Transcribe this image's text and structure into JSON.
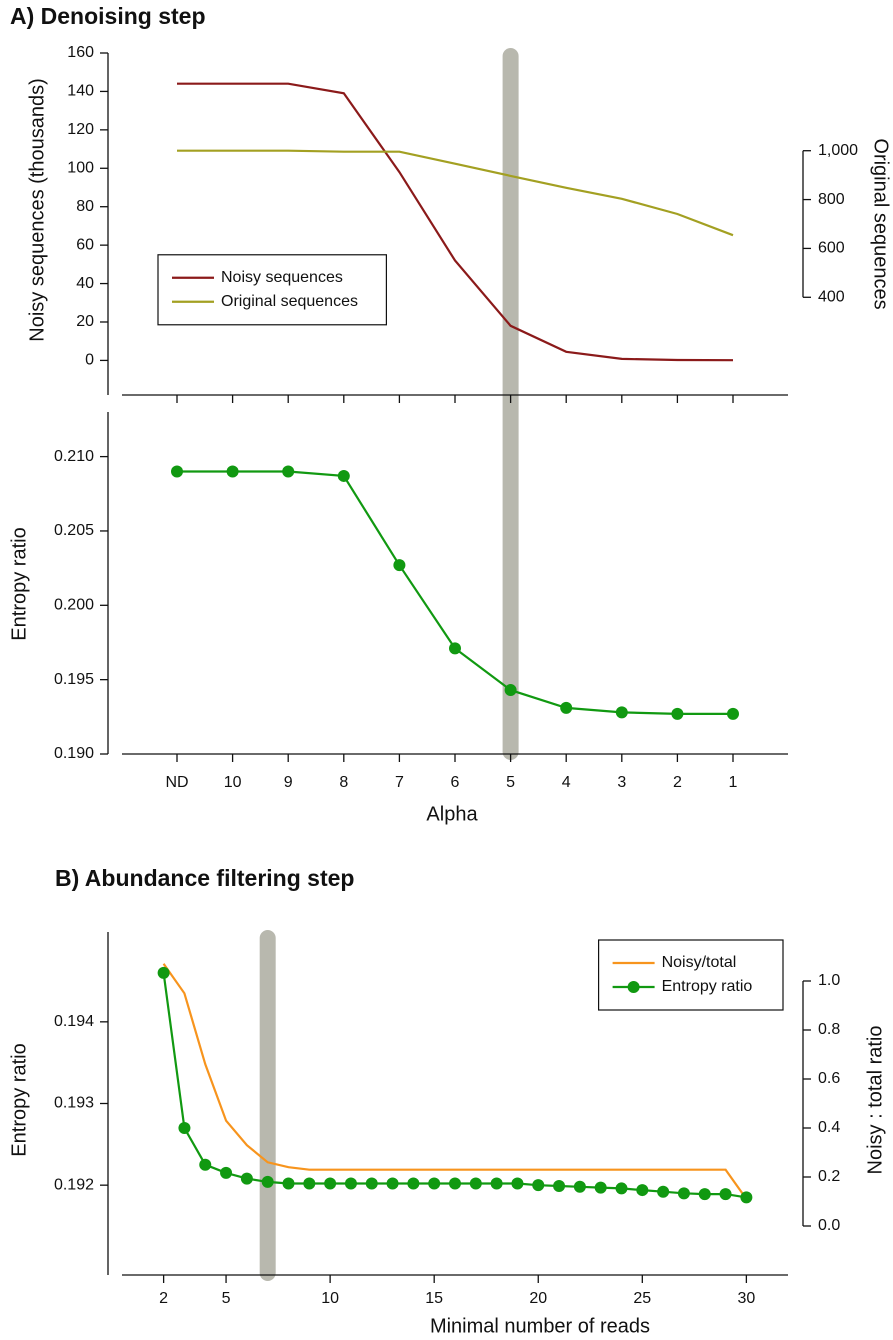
{
  "chart_data": [
    {
      "type": "line",
      "title": "A) Denoising step",
      "ylabel": "Noisy sequences (thousands)",
      "y2label": "Original sequences",
      "ylim": [
        -18,
        160
      ],
      "yticks": [
        0,
        20,
        40,
        60,
        80,
        100,
        120,
        140,
        160
      ],
      "y2lim": [
        0,
        1400
      ],
      "y2ticks": [
        400,
        600,
        800,
        {
          "value": 1000,
          "label": "1,000"
        }
      ],
      "legend": "center left",
      "series": [
        {
          "name": "Noisy sequences",
          "color": "#8b1a1a",
          "values": [
            144,
            144,
            144,
            139,
            98,
            52,
            18,
            4.5,
            0.8,
            0.2,
            0.1
          ]
        },
        {
          "name": "Original sequences",
          "color": "#a3a022",
          "axis": "y2",
          "values": [
            1000,
            1000,
            1000,
            996,
            996,
            947,
            897,
            848,
            803,
            741,
            654
          ]
        }
      ]
    },
    {
      "type": "line",
      "xlabel": "Alpha",
      "ylabel": "Entropy ratio",
      "categories": [
        "ND",
        "10",
        "9",
        "8",
        "7",
        "6",
        "5",
        "4",
        "3",
        "2",
        "1"
      ],
      "ylim": [
        0.19,
        0.213
      ],
      "yticks": [
        {
          "value": 0.19,
          "label": "0.190"
        },
        0.195,
        {
          "value": 0.2,
          "label": "0.200"
        },
        0.205,
        {
          "value": 0.21,
          "label": "0.210"
        }
      ],
      "highlight": "5",
      "highlight_color": "#b8b8ae",
      "series": [
        {
          "name": "Entropy ratio",
          "color": "#119911",
          "marker": true,
          "values": [
            0.209,
            0.209,
            0.209,
            0.2087,
            0.2027,
            0.1971,
            0.1943,
            0.1931,
            0.1928,
            0.1927,
            0.1927
          ]
        }
      ]
    },
    {
      "type": "line",
      "title": "B) Abundance filtering step",
      "xlabel": "Minimal number of reads",
      "ylabel": "Entropy ratio",
      "y2label": "Noisy : total ratio",
      "x": [
        2,
        3,
        4,
        5,
        6,
        7,
        8,
        9,
        10,
        11,
        12,
        13,
        14,
        15,
        16,
        17,
        18,
        19,
        20,
        21,
        22,
        23,
        24,
        25,
        26,
        27,
        28,
        29,
        30
      ],
      "xlim": [
        0,
        32
      ],
      "xticks": [
        2,
        5,
        10,
        15,
        20,
        25,
        30
      ],
      "ylim": [
        0.1909,
        0.1951
      ],
      "yticks": [
        0.192,
        0.193,
        0.194
      ],
      "y2lim": [
        -0.2,
        1.2
      ],
      "y2ticks": [
        {
          "value": 0,
          "label": "0.0"
        },
        0.2,
        0.4,
        0.6,
        0.8,
        {
          "value": 1,
          "label": "1.0"
        }
      ],
      "highlight": 7,
      "highlight_color": "#b8b8ae",
      "legend": "upper right",
      "series": [
        {
          "name": "Noisy/total",
          "color": "#f7941d",
          "axis": "y2",
          "values": [
            1.07,
            0.95,
            0.66,
            0.43,
            0.33,
            0.26,
            0.24,
            0.23,
            0.23,
            0.23,
            0.23,
            0.23,
            0.23,
            0.23,
            0.23,
            0.23,
            0.23,
            0.23,
            0.23,
            0.23,
            0.23,
            0.23,
            0.23,
            0.23,
            0.23,
            0.23,
            0.23,
            0.23,
            0.11
          ]
        },
        {
          "name": "Entropy ratio",
          "color": "#119911",
          "marker": true,
          "values": [
            0.1946,
            0.1927,
            0.19225,
            0.19215,
            0.19208,
            0.19204,
            0.19202,
            0.19202,
            0.19202,
            0.19202,
            0.19202,
            0.19202,
            0.19202,
            0.19202,
            0.19202,
            0.19202,
            0.19202,
            0.19202,
            0.192,
            0.19199,
            0.19198,
            0.19197,
            0.19196,
            0.19194,
            0.19192,
            0.1919,
            0.19189,
            0.19189,
            0.19185
          ]
        }
      ]
    }
  ]
}
